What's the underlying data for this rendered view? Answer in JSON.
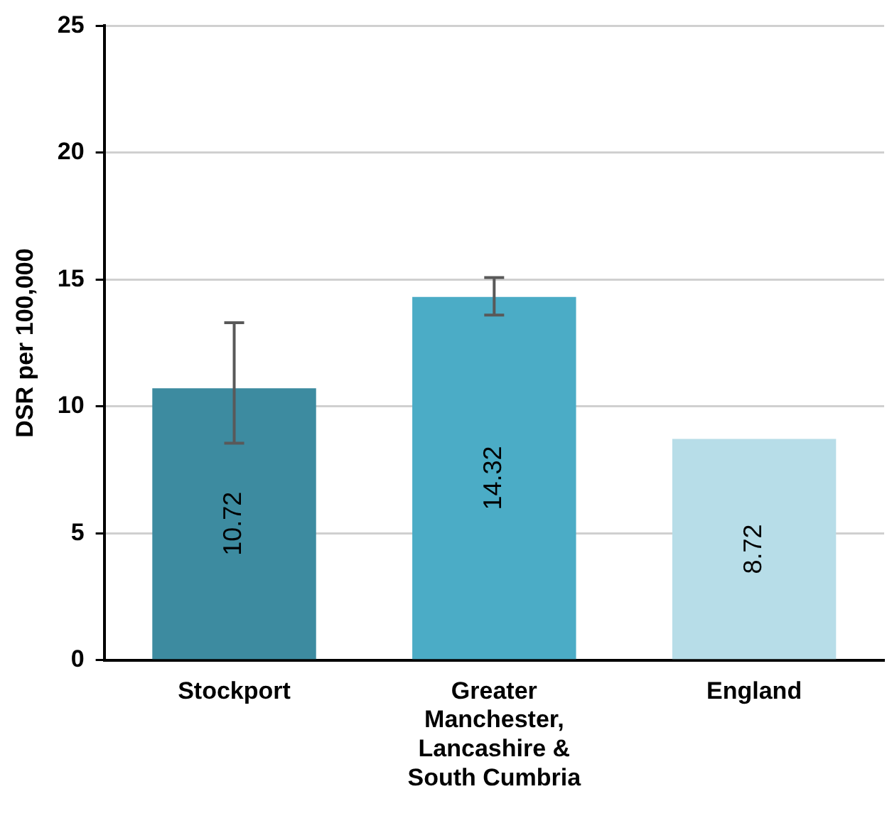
{
  "chart_data": {
    "type": "bar",
    "ylabel": "DSR per 100,000",
    "categories": [
      "Stockport",
      "Greater Manchester, Lancashire & South Cumbria",
      "England"
    ],
    "values": [
      10.72,
      14.32,
      8.72
    ],
    "colors": [
      "#3d8ba0",
      "#4bacc6",
      "#b7dde8"
    ],
    "errors": [
      [
        8.55,
        13.3
      ],
      [
        13.6,
        15.08
      ],
      null
    ],
    "data_labels": true,
    "ylim": [
      0,
      25
    ],
    "yticks": [
      0,
      5,
      10,
      15,
      20,
      25
    ],
    "grid": "y"
  }
}
